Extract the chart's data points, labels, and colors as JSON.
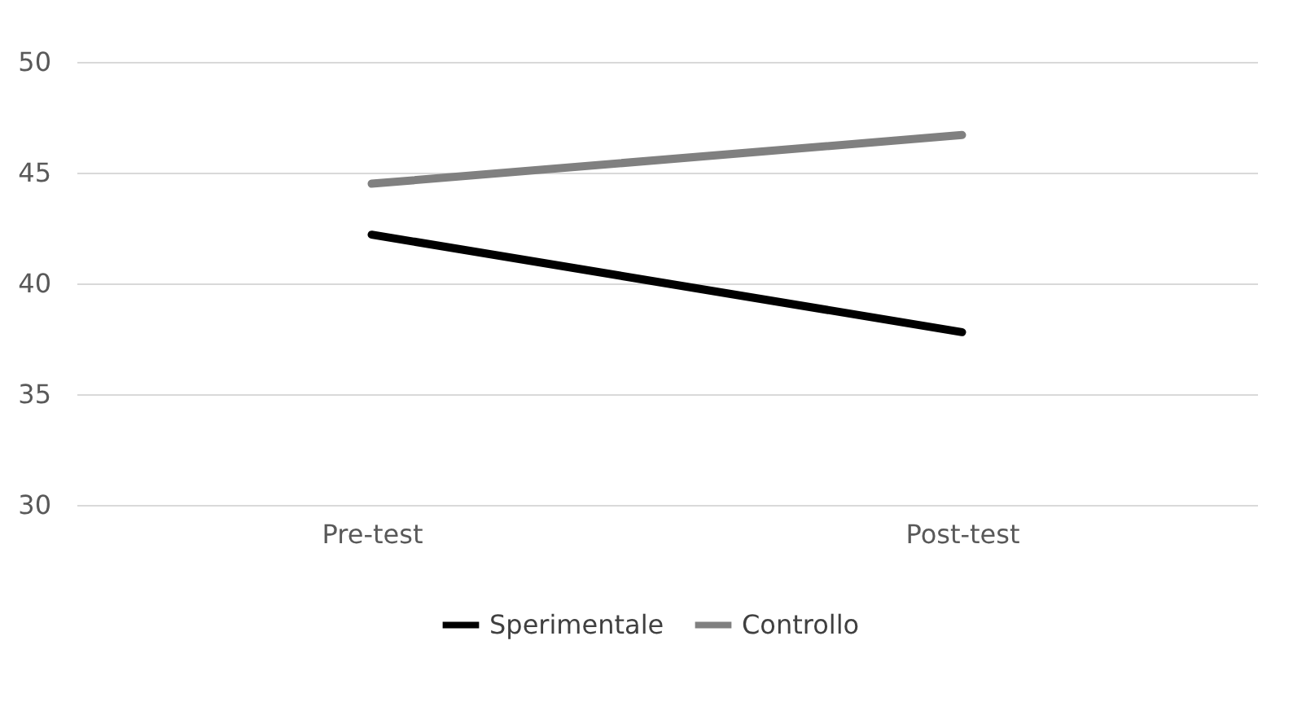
{
  "chart_data": {
    "type": "line",
    "categories": [
      "Pre-test",
      "Post-test"
    ],
    "series": [
      {
        "name": "Sperimentale",
        "color": "#000000",
        "values": [
          42.2,
          37.8
        ]
      },
      {
        "name": "Controllo",
        "color": "#808080",
        "values": [
          44.5,
          46.7
        ]
      }
    ],
    "ylim": [
      30,
      50
    ],
    "yticks": [
      30,
      35,
      40,
      45,
      50
    ],
    "grid": "y",
    "legend": "bottom",
    "marker": "none",
    "line_style": "solid"
  }
}
